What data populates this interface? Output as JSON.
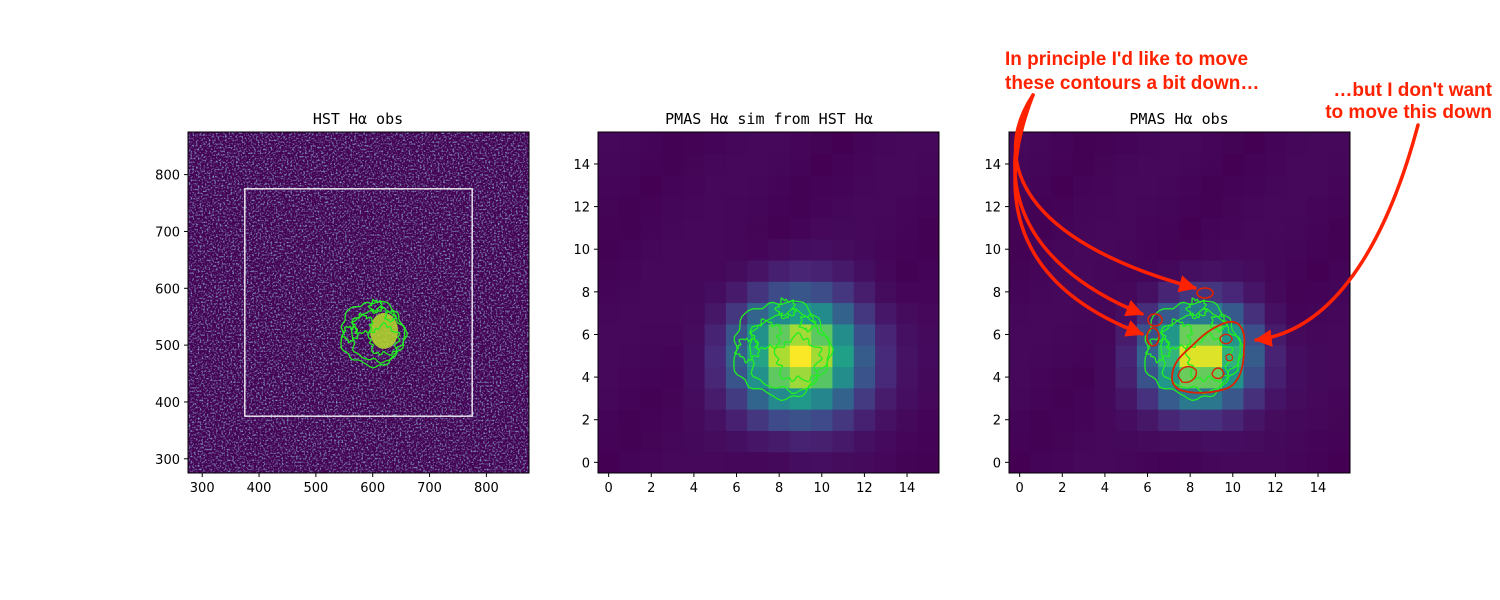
{
  "colors": {
    "viridis": [
      "#440154",
      "#482878",
      "#3e4a89",
      "#31688e",
      "#26828e",
      "#1f9e89",
      "#35b779",
      "#6ece58",
      "#b5de2b",
      "#fde725"
    ],
    "sim_contour": "#22ee22",
    "obs_contour": "#dd2200",
    "annotation": "#ff2200",
    "frame": "#ffffff"
  },
  "annotations": {
    "left_line1": "In principle I'd like to move",
    "left_line2": "these contours a bit down…",
    "right_line1": "…but I don't want",
    "right_line2": "to move this down"
  },
  "chart_data": [
    {
      "type": "heatmap",
      "title": "HST Hα obs",
      "xlim": [
        275,
        875
      ],
      "ylim": [
        275,
        875
      ],
      "xticks": [
        300,
        400,
        500,
        600,
        700,
        800
      ],
      "yticks": [
        300,
        400,
        500,
        600,
        700,
        800
      ],
      "colormap": "viridis",
      "contour_center": [
        600,
        520
      ],
      "subregion_box": {
        "x": [
          375,
          775
        ],
        "y": [
          375,
          775
        ]
      }
    },
    {
      "type": "heatmap",
      "title": "PMAS Hα sim from HST Hα",
      "xlim": [
        -0.5,
        15.5
      ],
      "ylim": [
        -0.5,
        15.5
      ],
      "xticks": [
        0,
        2,
        4,
        6,
        8,
        10,
        12,
        14
      ],
      "yticks": [
        0,
        2,
        4,
        6,
        8,
        10,
        12,
        14
      ],
      "colormap": "viridis",
      "peak": [
        9,
        5
      ],
      "sigma": 1.9,
      "contour_center": [
        8.1,
        5.3
      ]
    },
    {
      "type": "heatmap",
      "title": "PMAS Hα obs",
      "xlim": [
        -0.5,
        15.5
      ],
      "ylim": [
        -0.5,
        15.5
      ],
      "xticks": [
        0,
        2,
        4,
        6,
        8,
        10,
        12,
        14
      ],
      "yticks": [
        0,
        2,
        4,
        6,
        8,
        10,
        12,
        14
      ],
      "colormap": "viridis",
      "peak": [
        8.5,
        5
      ],
      "sigma": 1.6,
      "contour_center": [
        8.1,
        5.3
      ]
    }
  ]
}
